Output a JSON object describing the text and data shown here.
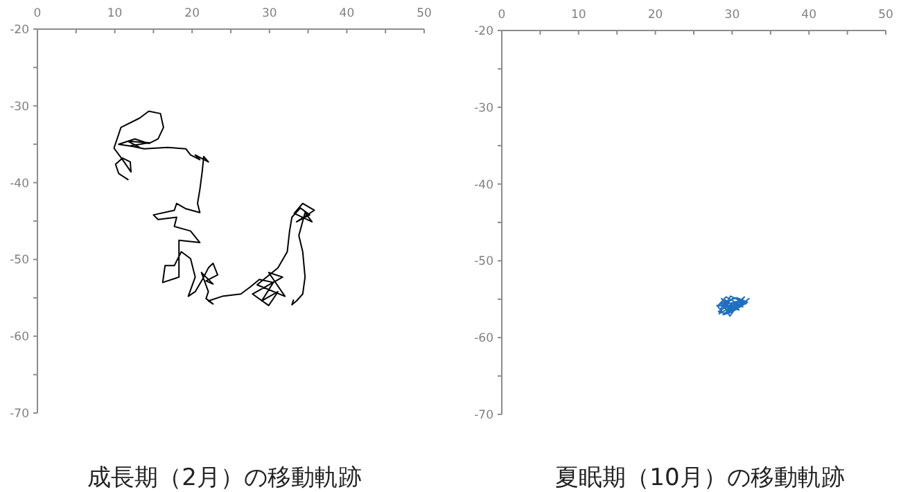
{
  "chart_data": [
    {
      "type": "line",
      "title": "成長期（2月）の移動軌跡",
      "xlim": [
        0,
        50
      ],
      "ylim": [
        -70,
        -20
      ],
      "xticks": [
        0,
        {
          "value": 5,
          "label": null
        },
        10,
        {
          "value": 15,
          "label": null
        },
        20,
        {
          "value": 25,
          "label": null
        },
        30,
        {
          "value": 35,
          "label": null
        },
        40,
        {
          "value": 45,
          "label": null
        },
        50
      ],
      "yticks": [
        -70,
        {
          "value": -65,
          "label": null
        },
        -60,
        {
          "value": -55,
          "label": null
        },
        -50,
        {
          "value": -45,
          "label": null
        },
        -40,
        {
          "value": -35,
          "label": null
        },
        -30,
        {
          "value": -25,
          "label": null
        },
        -20
      ],
      "series": [
        {
          "color": "#000000",
          "x": [
            11.7,
            10.5,
            10.1,
            11.0,
            12.0,
            12.1,
            11.0,
            9.9,
            10.8,
            13.2,
            14.4,
            15.9,
            16.3,
            15.6,
            14.4,
            12.6,
            10.5,
            13.2,
            11.7,
            14.4,
            12.0,
            13.8,
            16.8,
            19.2,
            19.8,
            21.0,
            20.4,
            22.1,
            21.5,
            21.3,
            21.0,
            20.7,
            21.0,
            19.2,
            18.0,
            17.7,
            15.0,
            15.6,
            18.0,
            17.7,
            19.8,
            21.0,
            18.3,
            18.3,
            16.2,
            16.5,
            17.7,
            18.6,
            19.8,
            20.4,
            19.5,
            20.4,
            21.5,
            22.1,
            22.7,
            23.3,
            21.8,
            22.7,
            21.2,
            22.1,
            21.8,
            22.7,
            22.1,
            23.9,
            26.3,
            27.5,
            28.7,
            30.5,
            29.0,
            31.1,
            29.9,
            27.8,
            31.7,
            29.9,
            32.0,
            28.4,
            31.1,
            32.3,
            32.6,
            32.9,
            34.0,
            35.2,
            33.5,
            35.8,
            34.3,
            33.2,
            35.5,
            34.6,
            33.8,
            34.3,
            34.6,
            34.3,
            33.5,
            32.9,
            33.1
          ],
          "values": [
            -39.6,
            -38.8,
            -37.6,
            -36.8,
            -37.3,
            -38.6,
            -37.0,
            -35.5,
            -32.8,
            -31.6,
            -30.7,
            -31.0,
            -32.8,
            -34.3,
            -34.9,
            -34.3,
            -35.0,
            -35.4,
            -34.6,
            -34.8,
            -35.2,
            -35.6,
            -35.4,
            -35.6,
            -36.4,
            -37.0,
            -36.4,
            -37.3,
            -36.6,
            -38.6,
            -40.9,
            -42.7,
            -43.9,
            -43.4,
            -42.7,
            -43.6,
            -44.2,
            -44.8,
            -44.5,
            -45.7,
            -46.3,
            -47.8,
            -47.5,
            -52.3,
            -53.0,
            -50.8,
            -50.8,
            -49.0,
            -49.9,
            -52.3,
            -54.8,
            -54.2,
            -52.3,
            -51.1,
            -50.5,
            -52.0,
            -52.8,
            -53.2,
            -51.7,
            -54.2,
            -55.1,
            -55.8,
            -55.4,
            -54.8,
            -54.5,
            -53.6,
            -52.6,
            -53.0,
            -55.4,
            -54.2,
            -56.0,
            -54.5,
            -52.3,
            -51.7,
            -54.8,
            -53.3,
            -51.1,
            -49.0,
            -46.3,
            -44.5,
            -43.3,
            -44.2,
            -45.1,
            -43.6,
            -42.7,
            -44.0,
            -45.1,
            -43.9,
            -46.9,
            -49.0,
            -52.3,
            -54.5,
            -55.4,
            -55.9,
            -55.3
          ]
        }
      ]
    },
    {
      "type": "line",
      "title": "夏眠期（10月）の移動軌跡",
      "xlim": [
        0,
        50
      ],
      "ylim": [
        -70,
        -20
      ],
      "xticks": [
        0,
        {
          "value": 5,
          "label": null
        },
        10,
        {
          "value": 15,
          "label": null
        },
        20,
        {
          "value": 25,
          "label": null
        },
        30,
        {
          "value": 35,
          "label": null
        },
        40,
        {
          "value": 45,
          "label": null
        },
        50
      ],
      "yticks": [
        -70,
        {
          "value": -65,
          "label": null
        },
        -60,
        {
          "value": -55,
          "label": null
        },
        -50,
        {
          "value": -45,
          "label": null
        },
        -40,
        {
          "value": -35,
          "label": null
        },
        -30,
        {
          "value": -25,
          "label": null
        },
        -20
      ],
      "series": [
        {
          "color": "#1f6fc0",
          "x": [
            29.5,
            28.4,
            30.2,
            31.5,
            29.0,
            28.0,
            30.8,
            32.2,
            30.0,
            28.6,
            29.6,
            31.2,
            29.3,
            28.2,
            30.5,
            31.8,
            29.8,
            28.9,
            30.9,
            29.1,
            28.3,
            30.4,
            31.6,
            29.7,
            28.7,
            30.1,
            31.0,
            29.4,
            28.5,
            30.6,
            32.0,
            29.9,
            28.8,
            30.3,
            31.4,
            29.2,
            28.1,
            30.7,
            29.6,
            29.9
          ],
          "values": [
            -55.5,
            -56.3,
            -54.8,
            -55.2,
            -57.0,
            -55.8,
            -56.1,
            -54.9,
            -56.6,
            -54.9,
            -55.9,
            -55.5,
            -56.9,
            -56.6,
            -55.3,
            -55.6,
            -54.6,
            -56.0,
            -56.4,
            -55.1,
            -56.9,
            -55.7,
            -54.7,
            -57.2,
            -55.4,
            -56.2,
            -55.0,
            -56.5,
            -55.6,
            -54.8,
            -55.4,
            -56.7,
            -57.0,
            -55.8,
            -56.0,
            -54.7,
            -55.9,
            -55.3,
            -56.2,
            -55.8
          ]
        }
      ]
    }
  ]
}
